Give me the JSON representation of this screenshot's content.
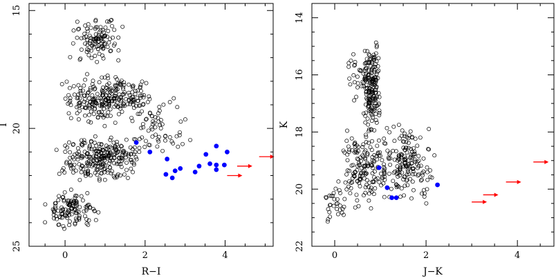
{
  "chart_data": [
    {
      "type": "scatter",
      "title": "",
      "xlabel": "R−I",
      "ylabel": "I",
      "xlim": [
        -0.9,
        5.2
      ],
      "ylim": [
        25,
        14.7
      ],
      "y_inverted": true,
      "xticks": [
        0,
        2,
        4
      ],
      "yticks": [
        15,
        20,
        25
      ],
      "xtick_labels": [
        "0",
        "2",
        "4"
      ],
      "ytick_labels": [
        "15",
        "20",
        "25"
      ],
      "grid": false,
      "colors": {
        "open": "#000000",
        "highlight": "#0000ff",
        "limit": "#ff0000"
      },
      "background_cloud": {
        "description_marker": "open-circle",
        "regions": [
          {
            "x_range": [
              0.05,
              1.5
            ],
            "y_range": [
              15.0,
              17.5
            ],
            "count": 110
          },
          {
            "x_range": [
              -0.1,
              2.2
            ],
            "y_range": [
              17.5,
              20.0
            ],
            "count": 260
          },
          {
            "x_range": [
              -0.3,
              2.0
            ],
            "y_range": [
              20.0,
              22.5
            ],
            "count": 260
          },
          {
            "x_range": [
              -0.6,
              0.9
            ],
            "y_range": [
              22.5,
              24.4
            ],
            "count": 120
          },
          {
            "x_range": [
              1.6,
              3.2
            ],
            "y_range": [
              18.5,
              21.5
            ],
            "count": 60
          }
        ]
      },
      "highlighted_points": [
        {
          "x": 1.78,
          "y": 20.6
        },
        {
          "x": 2.12,
          "y": 21.0
        },
        {
          "x": 2.55,
          "y": 21.3
        },
        {
          "x": 2.52,
          "y": 21.95
        },
        {
          "x": 2.68,
          "y": 22.1
        },
        {
          "x": 2.75,
          "y": 21.8
        },
        {
          "x": 2.88,
          "y": 21.7
        },
        {
          "x": 3.25,
          "y": 21.85
        },
        {
          "x": 3.35,
          "y": 21.6
        },
        {
          "x": 3.52,
          "y": 21.1
        },
        {
          "x": 3.62,
          "y": 21.5
        },
        {
          "x": 3.78,
          "y": 20.75
        },
        {
          "x": 3.78,
          "y": 21.55
        },
        {
          "x": 3.78,
          "y": 21.75
        },
        {
          "x": 3.98,
          "y": 21.55
        },
        {
          "x": 4.05,
          "y": 21.0
        }
      ],
      "limit_arrows": [
        {
          "x": 4.05,
          "y": 22.0
        },
        {
          "x": 4.3,
          "y": 21.6
        },
        {
          "x": 4.85,
          "y": 21.2
        }
      ]
    },
    {
      "type": "scatter",
      "title": "",
      "xlabel": "J−K",
      "ylabel": "K",
      "xlim": [
        -0.5,
        4.8
      ],
      "ylim": [
        22,
        13.5
      ],
      "y_inverted": true,
      "xticks": [
        0,
        2,
        4
      ],
      "yticks": [
        14,
        16,
        18,
        20,
        22
      ],
      "xtick_labels": [
        "0",
        "2",
        "4"
      ],
      "ytick_labels": [
        "14",
        "16",
        "18",
        "20",
        "22"
      ],
      "grid": false,
      "colors": {
        "open": "#000000",
        "highlight": "#0000ff",
        "limit": "#ff0000"
      },
      "background_cloud": {
        "description_marker": "open-circle",
        "regions": [
          {
            "x_range": [
              0.6,
              1.0
            ],
            "y_range": [
              14.3,
              19.0
            ],
            "count": 170
          },
          {
            "x_range": [
              0.2,
              1.0
            ],
            "y_range": [
              14.5,
              17.5
            ],
            "count": 40
          },
          {
            "x_range": [
              0.1,
              1.2
            ],
            "y_range": [
              17.5,
              21.0
            ],
            "count": 160
          },
          {
            "x_range": [
              1.0,
              2.2
            ],
            "y_range": [
              17.4,
              20.9
            ],
            "count": 170
          },
          {
            "x_range": [
              -0.3,
              0.4
            ],
            "y_range": [
              19.5,
              21.8
            ],
            "count": 30
          }
        ]
      },
      "highlighted_points": [
        {
          "x": 0.97,
          "y": 19.25
        },
        {
          "x": 1.15,
          "y": 19.95
        },
        {
          "x": 1.25,
          "y": 20.3
        },
        {
          "x": 1.35,
          "y": 20.3
        },
        {
          "x": 2.25,
          "y": 19.85
        }
      ],
      "limit_arrows": [
        {
          "x": 3.0,
          "y": 20.45
        },
        {
          "x": 3.25,
          "y": 20.2
        },
        {
          "x": 3.75,
          "y": 19.75
        },
        {
          "x": 4.35,
          "y": 19.05
        }
      ]
    }
  ]
}
